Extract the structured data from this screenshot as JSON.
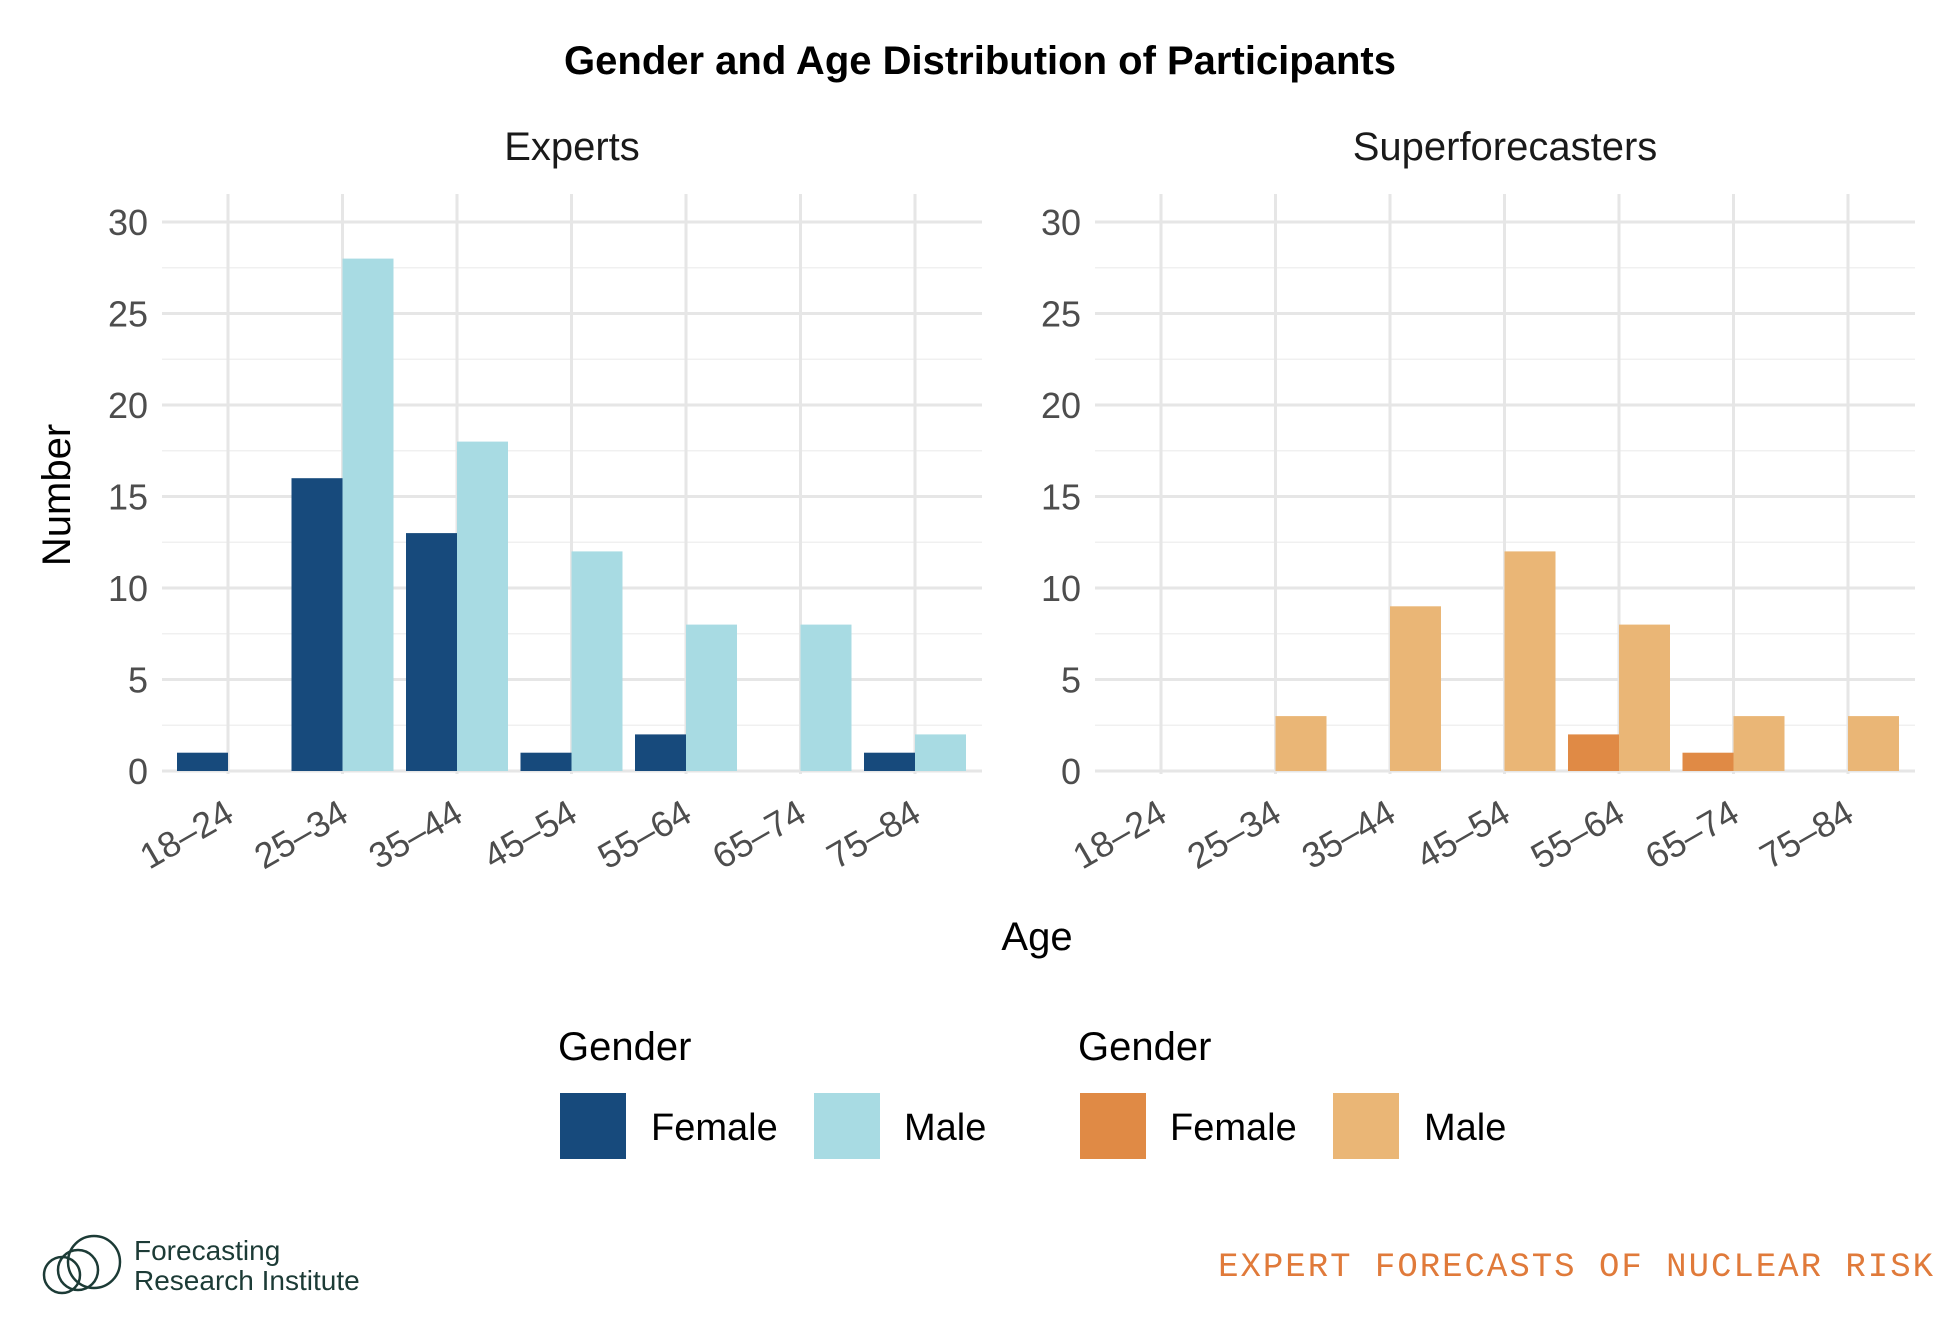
{
  "title": "Gender and Age Distribution of Participants",
  "footer": {
    "brand_line1": "Forecasting",
    "brand_line2": "Research Institute",
    "tagline": "EXPERT FORECASTS OF NUCLEAR RISK"
  },
  "chart_data": {
    "type": "bar",
    "title": "Gender and Age Distribution of Participants",
    "xlabel": "Age",
    "ylabel": "Number",
    "categories": [
      "18–24",
      "25–34",
      "35–44",
      "45–54",
      "55–64",
      "65–74",
      "75–84"
    ],
    "ylim": [
      0,
      30
    ],
    "yticks": [
      0,
      5,
      10,
      15,
      20,
      25,
      30
    ],
    "grid": true,
    "legend_position": "bottom",
    "panels": [
      {
        "name": "Experts",
        "legend_title": "Gender",
        "series": [
          {
            "name": "Female",
            "color": "#174a7c",
            "values": [
              1,
              16,
              13,
              1,
              2,
              0,
              1
            ]
          },
          {
            "name": "Male",
            "color": "#a8dbe3",
            "values": [
              0,
              28,
              18,
              12,
              8,
              8,
              2
            ]
          }
        ]
      },
      {
        "name": "Superforecasters",
        "legend_title": "Gender",
        "series": [
          {
            "name": "Female",
            "color": "#e08a45",
            "values": [
              0,
              0,
              0,
              0,
              2,
              1,
              0
            ]
          },
          {
            "name": "Male",
            "color": "#eab676",
            "values": [
              0,
              3,
              9,
              12,
              8,
              3,
              3
            ]
          }
        ]
      }
    ]
  }
}
